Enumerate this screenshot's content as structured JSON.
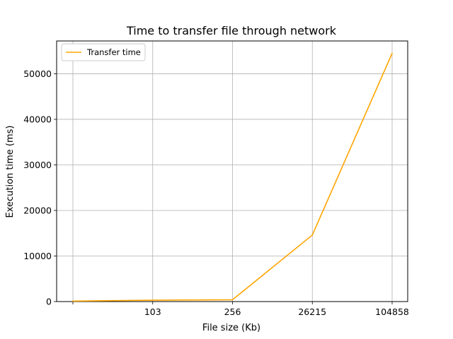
{
  "chart_data": {
    "type": "line",
    "title": "Time to transfer file through network",
    "xlabel": "File size (Kb)",
    "ylabel": "Execution time (ms)",
    "categories": [
      "",
      "103",
      "256",
      "26215",
      "104858"
    ],
    "series": [
      {
        "name": "Transfer time",
        "color": "#FFA500",
        "values": [
          100,
          300,
          400,
          14600,
          54500
        ]
      }
    ],
    "yticks": [
      0,
      10000,
      20000,
      30000,
      40000,
      50000
    ],
    "ylim": [
      0,
      57200
    ],
    "grid": true,
    "legend": "top-left"
  }
}
